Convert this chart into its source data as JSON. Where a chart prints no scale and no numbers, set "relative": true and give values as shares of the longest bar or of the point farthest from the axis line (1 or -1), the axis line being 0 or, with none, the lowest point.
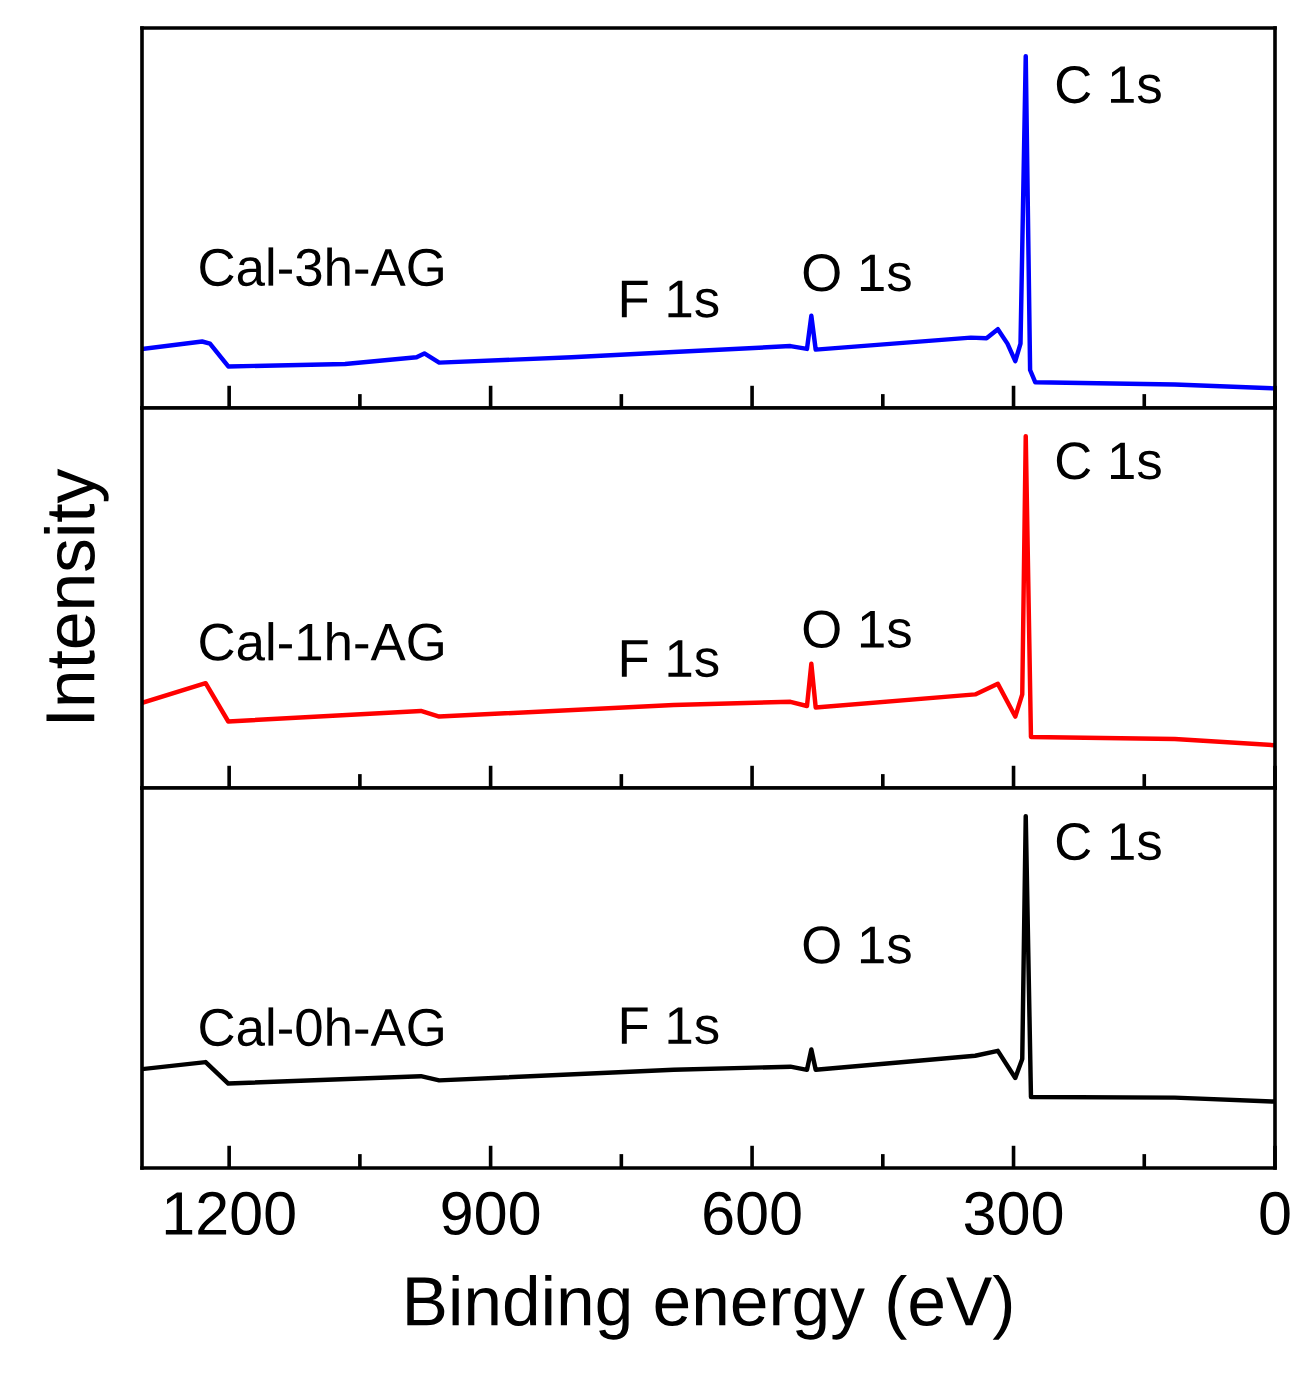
{
  "chart_data": [
    {
      "type": "line",
      "relative": true,
      "xlim": [
        1300,
        0
      ],
      "xticks": [
        1200,
        {
          "value": 1050,
          "label": null
        },
        900,
        {
          "value": 750,
          "label": null
        },
        600,
        {
          "value": 450,
          "label": null
        },
        300,
        {
          "value": 150,
          "label": null
        },
        0
      ],
      "tick_labels": false,
      "grid": false,
      "legend": false,
      "series": [
        {
          "color": "#0000ff",
          "x": [
            1300,
            1231,
            1222,
            1201,
            1067,
            985,
            976,
            959,
            807,
            690,
            556,
            537,
            532,
            527,
            349,
            331,
            318,
            307,
            298,
            292,
            286,
            281,
            275,
            115,
            3
          ],
          "values": [
            0.168,
            0.189,
            0.183,
            0.118,
            0.125,
            0.144,
            0.155,
            0.129,
            0.144,
            0.159,
            0.176,
            0.168,
            0.262,
            0.166,
            0.2,
            0.198,
            0.224,
            0.183,
            0.133,
            0.183,
            1.0,
            0.108,
            0.073,
            0.067,
            0.056
          ]
        }
      ],
      "annotations": [
        "Cal-3h-AG",
        "F 1s",
        "O 1s",
        "C 1s"
      ]
    },
    {
      "type": "line",
      "relative": true,
      "xlim": [
        1300,
        0
      ],
      "xticks": [
        1200,
        {
          "value": 1050,
          "label": null
        },
        900,
        {
          "value": 750,
          "label": null
        },
        600,
        {
          "value": 450,
          "label": null
        },
        300,
        {
          "value": 150,
          "label": null
        },
        0
      ],
      "tick_labels": false,
      "grid": false,
      "legend": false,
      "ylabel": "Intensity",
      "series": [
        {
          "color": "#ff0000",
          "x": [
            1300,
            1227,
            1201,
            980,
            959,
            690,
            556,
            537,
            532,
            527,
            344,
            318,
            298,
            290,
            286,
            280,
            115,
            3
          ],
          "values": [
            0.242,
            0.298,
            0.189,
            0.219,
            0.203,
            0.236,
            0.245,
            0.233,
            0.353,
            0.229,
            0.266,
            0.296,
            0.203,
            0.266,
            1.0,
            0.145,
            0.139,
            0.122
          ]
        }
      ],
      "annotations": [
        "Cal-1h-AG",
        "F 1s",
        "O 1s",
        "C 1s"
      ]
    },
    {
      "type": "line",
      "relative": true,
      "xlim": [
        1300,
        0
      ],
      "xticks": [
        1200,
        {
          "value": 1050,
          "label": null
        },
        900,
        {
          "value": 750,
          "label": null
        },
        600,
        {
          "value": 450,
          "label": null
        },
        300,
        {
          "value": 150,
          "label": null
        },
        0
      ],
      "tick_labels": "x",
      "grid": false,
      "legend": false,
      "xlabel": "Binding energy (eV)",
      "series": [
        {
          "color": "#000000",
          "x": [
            1300,
            1227,
            1201,
            980,
            959,
            690,
            556,
            537,
            532,
            527,
            344,
            318,
            298,
            290,
            286,
            280,
            115,
            3
          ],
          "values": [
            0.281,
            0.301,
            0.24,
            0.261,
            0.249,
            0.279,
            0.288,
            0.279,
            0.337,
            0.279,
            0.319,
            0.333,
            0.256,
            0.31,
            1.0,
            0.202,
            0.2,
            0.189
          ]
        }
      ],
      "annotations": [
        "Cal-0h-AG",
        "F 1s",
        "O 1s",
        "C 1s"
      ]
    }
  ]
}
